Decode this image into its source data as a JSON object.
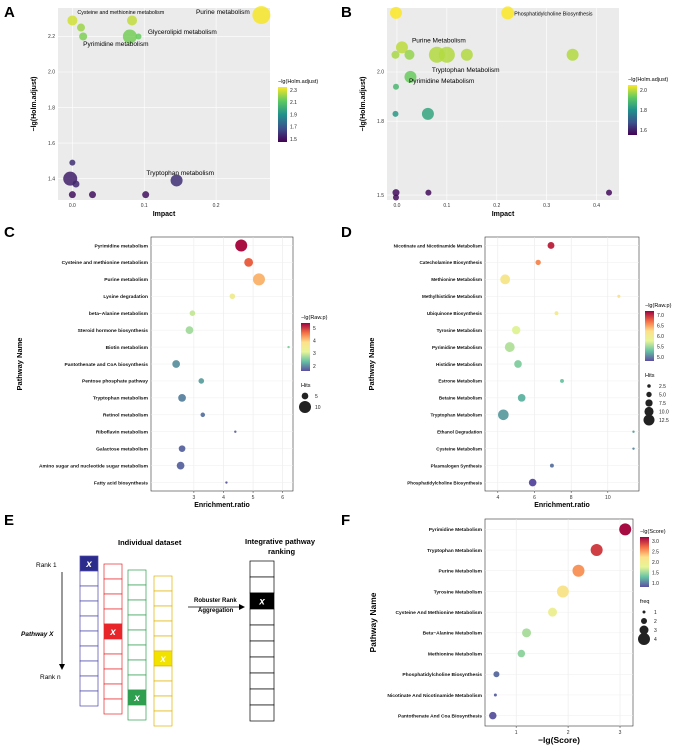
{
  "panel_letters": {
    "a": "A",
    "b": "B",
    "c": "C",
    "d": "D",
    "e": "E",
    "f": "F"
  },
  "chart_data": [
    {
      "panel": "A",
      "type": "scatter",
      "xlabel": "Impact",
      "ylabel": "−lg(Holm.adjust)",
      "xlim": [
        -0.02,
        0.275
      ],
      "ylim": [
        1.28,
        2.36
      ],
      "xticks": [
        0.0,
        0.1,
        0.2
      ],
      "xtick_labels": [
        "0.0",
        "0.1",
        "0.2"
      ],
      "yticks": [
        1.4,
        1.6,
        1.8,
        2.0,
        2.2
      ],
      "ytick_labels": [
        "1.4",
        "1.6",
        "1.8",
        "2.0",
        "2.2"
      ],
      "legend_title": "−lg(Holm.adjust)",
      "legend_ticks": [
        "2.3",
        "2.1",
        "1.9",
        "1.7",
        "1.5"
      ],
      "color_range": [
        1.48,
        2.33
      ],
      "points": [
        {
          "x": 0.263,
          "y": 2.32,
          "c": 2.32,
          "s": 9
        },
        {
          "x": 0.0,
          "y": 2.29,
          "c": 2.27,
          "s": 5
        },
        {
          "x": 0.083,
          "y": 2.29,
          "c": 2.25,
          "s": 5
        },
        {
          "x": 0.012,
          "y": 2.25,
          "c": 2.2,
          "s": 4
        },
        {
          "x": 0.015,
          "y": 2.2,
          "c": 2.16,
          "s": 4
        },
        {
          "x": 0.08,
          "y": 2.2,
          "c": 2.15,
          "s": 7
        },
        {
          "x": 0.092,
          "y": 2.2,
          "c": 2.13,
          "s": 3
        },
        {
          "x": 0.0,
          "y": 1.49,
          "c": 1.6,
          "s": 3
        },
        {
          "x": -0.003,
          "y": 1.4,
          "c": 1.56,
          "s": 7
        },
        {
          "x": 0.005,
          "y": 1.37,
          "c": 1.58,
          "s": 3.5
        },
        {
          "x": 0.145,
          "y": 1.39,
          "c": 1.6,
          "s": 6
        },
        {
          "x": 0.0,
          "y": 1.31,
          "c": 1.52,
          "s": 3.5
        },
        {
          "x": 0.028,
          "y": 1.31,
          "c": 1.52,
          "s": 3.5
        },
        {
          "x": 0.102,
          "y": 1.31,
          "c": 1.52,
          "s": 3.5
        }
      ],
      "annotations": [
        {
          "text": "Cysteine and methionine metabolism",
          "x": 0.007,
          "y": 2.325,
          "size": "sm"
        },
        {
          "text": "Purine metabolism",
          "x": 0.172,
          "y": 2.325,
          "size": "md"
        },
        {
          "text": "Glycerolipid metabolism",
          "x": 0.105,
          "y": 2.215,
          "size": "md"
        },
        {
          "text": "Pyrimidine metabolism",
          "x": 0.015,
          "y": 2.145,
          "size": "md"
        },
        {
          "text": "Tryptophan metabolism",
          "x": 0.103,
          "y": 1.42,
          "size": "md"
        }
      ]
    },
    {
      "panel": "B",
      "type": "scatter",
      "xlabel": "Impact",
      "ylabel": "−lg(Holm.adjust)",
      "xlim": [
        -0.02,
        0.445
      ],
      "ylim": [
        1.48,
        2.26
      ],
      "xticks": [
        0.0,
        0.1,
        0.2,
        0.3,
        0.4
      ],
      "xtick_labels": [
        "0.0",
        "0.1",
        "0.2",
        "0.3",
        "0.4"
      ],
      "yticks": [
        1.5,
        1.8,
        2.0
      ],
      "ytick_labels": [
        "1.5",
        "1.8",
        "2.0"
      ],
      "legend_title": "−lg(Holm.adjust)",
      "legend_ticks": [
        "2.0",
        "1.8",
        "1.6"
      ],
      "color_range": [
        1.5,
        2.1
      ],
      "points": [
        {
          "x": -0.002,
          "y": 2.24,
          "c": 2.1,
          "s": 6
        },
        {
          "x": 0.222,
          "y": 2.24,
          "c": 2.1,
          "s": 6.5
        },
        {
          "x": 0.01,
          "y": 2.1,
          "c": 2.04,
          "s": 6
        },
        {
          "x": -0.003,
          "y": 2.07,
          "c": 2.02,
          "s": 4
        },
        {
          "x": 0.025,
          "y": 2.07,
          "c": 2.0,
          "s": 5
        },
        {
          "x": 0.08,
          "y": 2.07,
          "c": 2.03,
          "s": 8
        },
        {
          "x": 0.1,
          "y": 2.07,
          "c": 2.03,
          "s": 8
        },
        {
          "x": 0.14,
          "y": 2.07,
          "c": 2.03,
          "s": 6
        },
        {
          "x": 0.352,
          "y": 2.07,
          "c": 2.03,
          "s": 6
        },
        {
          "x": 0.027,
          "y": 1.98,
          "c": 1.96,
          "s": 6
        },
        {
          "x": -0.002,
          "y": 1.94,
          "c": 1.9,
          "s": 3
        },
        {
          "x": 0.062,
          "y": 1.83,
          "c": 1.85,
          "s": 6
        },
        {
          "x": -0.003,
          "y": 1.83,
          "c": 1.82,
          "s": 3
        },
        {
          "x": -0.002,
          "y": 1.51,
          "c": 1.52,
          "s": 3.5
        },
        {
          "x": 0.063,
          "y": 1.51,
          "c": 1.52,
          "s": 3
        },
        {
          "x": 0.425,
          "y": 1.51,
          "c": 1.52,
          "s": 3
        },
        {
          "x": -0.002,
          "y": 1.49,
          "c": 1.52,
          "s": 3
        }
      ],
      "annotations": [
        {
          "text": "Phosphatidylcholine Biosynthesis",
          "x": 0.235,
          "y": 2.23,
          "size": "sm"
        },
        {
          "text": "Purine Metabolism",
          "x": 0.03,
          "y": 2.12,
          "size": "md"
        },
        {
          "text": "Tryptophan Metabolism",
          "x": 0.07,
          "y": 2.0,
          "size": "md"
        },
        {
          "text": "Pyrimidine Metabolism",
          "x": 0.024,
          "y": 1.955,
          "size": "md"
        }
      ]
    },
    {
      "panel": "C",
      "type": "scatter",
      "xlabel": "Enrichment.ratio",
      "ylabel": "Pathway Name",
      "xlim": [
        1.55,
        6.35
      ],
      "xticks": [
        3,
        4,
        5,
        6
      ],
      "xtick_labels": [
        "3",
        "4",
        "5",
        "6"
      ],
      "categories": [
        "Pyrimidine metabolism",
        "Cysteine and methionine metabolism",
        "Purine metabolism",
        "Lysine degradation",
        "beta−Alanine metabolism",
        "Steroid hormone biosynthesis",
        "Biotin metabolism",
        "Pantothenate and CoA biosynthesis",
        "Pentose phosphate pathway",
        "Tryptophan metabolism",
        "Retinol metabolism",
        "Riboflavin metabolism",
        "Galactose metabolism",
        "Amino sugar and nucleotide sugar metabolism",
        "Fatty acid biosynthesis"
      ],
      "x": [
        4.6,
        4.85,
        5.2,
        4.3,
        2.95,
        2.85,
        6.2,
        2.4,
        3.25,
        2.6,
        3.3,
        4.4,
        2.6,
        2.55,
        4.1
      ],
      "color": [
        5.6,
        5.0,
        4.4,
        3.6,
        3.1,
        2.9,
        2.7,
        2.2,
        2.3,
        2.1,
        2.0,
        1.9,
        1.9,
        1.9,
        1.8
      ],
      "hits": [
        10,
        7,
        10,
        4,
        4,
        6,
        1,
        6,
        4,
        6,
        3,
        1,
        5,
        6,
        1
      ],
      "legend_title": "−lg(Raw.p)",
      "legend_ticks": [
        "5",
        "4",
        "3",
        "2"
      ],
      "color_range": [
        1.7,
        5.7
      ],
      "size_title": "Hits",
      "size_ticks": [
        "5",
        "10"
      ]
    },
    {
      "panel": "D",
      "type": "scatter",
      "xlabel": "Enrichment.ratio",
      "ylabel": "Pathway Name",
      "xlim": [
        3.3,
        11.7
      ],
      "xticks": [
        4,
        6,
        8,
        10
      ],
      "xtick_labels": [
        "4",
        "6",
        "8",
        "10"
      ],
      "categories": [
        "Nicotinate and Nicotinamide Metabolism",
        "Catecholamine Biosynthesis",
        "Methionine Metabolism",
        "Methylhistidine Metabolism",
        "Ubiquinone Biosynthesis",
        "Tyrosine Metabolism",
        "Pyrimidine Metabolism",
        "Histidine Metabolism",
        "Estrone Metabolism",
        "Betaine Metabolism",
        "Tryptophan Metabolism",
        "Ethanol Degradation",
        "Cysteine Metabolism",
        "Plasmalogen Synthesis",
        "Phosphatidylcholine Biosynthesis"
      ],
      "x": [
        6.9,
        6.2,
        4.4,
        10.6,
        7.2,
        5.0,
        4.65,
        5.1,
        7.5,
        5.3,
        4.3,
        11.4,
        11.4,
        6.95,
        5.9
      ],
      "color": [
        7.1,
        6.6,
        6.0,
        6.1,
        5.9,
        5.6,
        5.4,
        5.2,
        5.1,
        5.0,
        4.9,
        4.9,
        4.8,
        4.7,
        4.5
      ],
      "hits": [
        7,
        5,
        11,
        2,
        3,
        9,
        11,
        8,
        3,
        8,
        12,
        1,
        1,
        3,
        8
      ],
      "legend_title": "−lg(Raw.p)",
      "legend_ticks": [
        "7.0",
        "6.5",
        "6.0",
        "5.5",
        "5.0"
      ],
      "color_range": [
        4.5,
        7.3
      ],
      "size_title": "Hits",
      "size_ticks": [
        "2.5",
        "5.0",
        "7.5",
        "10.0",
        "12.5"
      ]
    },
    {
      "panel": "F",
      "type": "scatter",
      "xlabel": "−lg(Score)",
      "ylabel": "Pathway Name",
      "xlim": [
        0.4,
        3.25
      ],
      "xticks": [
        1,
        2,
        3
      ],
      "xtick_labels": [
        "1",
        "2",
        "3"
      ],
      "categories": [
        "Pyrimidine Metabolism",
        "Tryptophan Metabolism",
        "Purine Metabolism",
        "Tyrosine Metabolism",
        "Cysteine And Methionine Metabolism",
        "Beta−Alanine Metabolism",
        "Methionine Metabolism",
        "Phosphatidylcholine Biosynthesis",
        "Nicotinate And Nicotinamide Metabolism",
        "Pantothenate And Coa Biosynthesis"
      ],
      "x": [
        3.1,
        2.55,
        2.2,
        1.9,
        1.7,
        1.2,
        1.1,
        0.62,
        0.6,
        0.55
      ],
      "color": [
        3.1,
        2.85,
        2.45,
        2.0,
        1.75,
        1.35,
        1.25,
        0.7,
        0.65,
        0.6
      ],
      "freq": [
        4,
        4,
        4,
        4,
        3,
        3,
        2.5,
        2,
        1,
        2.5
      ],
      "legend_title": "−lg(Score)",
      "legend_ticks": [
        "3.0",
        "2.5",
        "2.0",
        "1.5",
        "1.0"
      ],
      "color_range": [
        0.55,
        3.15
      ],
      "size_title": "freq",
      "size_ticks": [
        "1",
        "2",
        "3",
        "4"
      ]
    }
  ],
  "panel_e": {
    "title_left": "Individual dataset",
    "title_right": "Integrative pathway ranking",
    "rank_top": "Rank 1",
    "rank_bottom": "Rank n",
    "pathway_label": "Pathway X",
    "method_line1": "Robuster Rank",
    "method_line2": "Aggregation",
    "marker": "x",
    "colors": {
      "blue": "#2b2b8c",
      "red": "#e8262a",
      "green": "#2e9e4f",
      "yellow": "#f2e200",
      "black": "#000000"
    }
  }
}
